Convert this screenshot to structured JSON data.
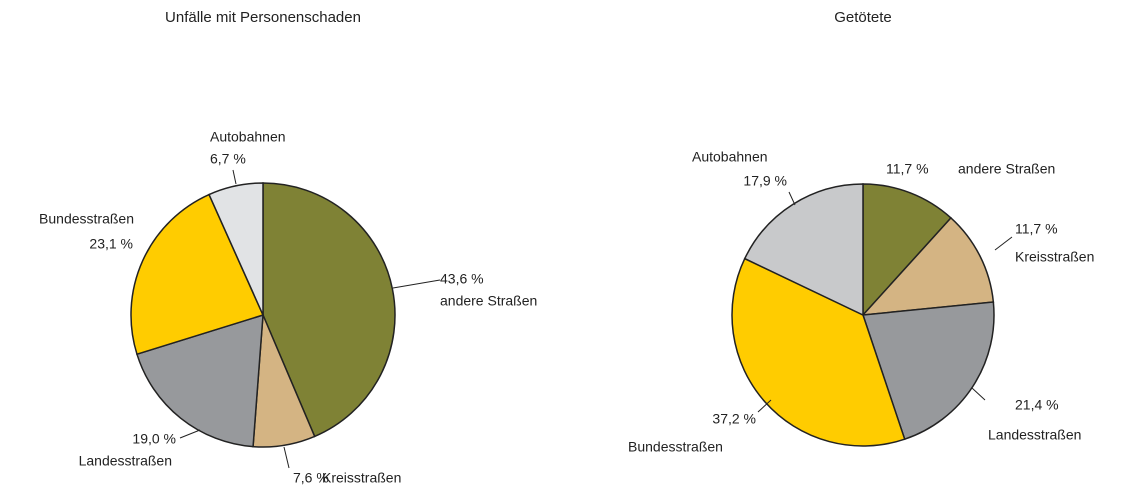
{
  "chart_data": [
    {
      "type": "pie",
      "title": "Unfälle mit Personenschaden",
      "categories": [
        "andere Straßen",
        "Kreisstraßen",
        "Landesstraßen",
        "Bundesstraßen",
        "Autobahnen"
      ],
      "values": [
        43.6,
        7.6,
        19.0,
        23.1,
        6.7
      ],
      "value_labels": [
        "43,6 %",
        "7,6 %",
        "19,0 %",
        "23,1 %",
        "6,7 %"
      ],
      "colors": [
        "#7f8235",
        "#d4b483",
        "#97999c",
        "#ffcc00",
        "#e1e3e5"
      ]
    },
    {
      "type": "pie",
      "title": "Getötete",
      "categories": [
        "andere Straßen",
        "Kreisstraßen",
        "Landesstraßen",
        "Bundesstraßen",
        "Autobahnen"
      ],
      "values": [
        11.7,
        11.7,
        21.4,
        37.2,
        17.9
      ],
      "value_labels": [
        "11,7 %",
        "11,7 %",
        "21,4 %",
        "37,2 %",
        "17,9 %"
      ],
      "colors": [
        "#7f8235",
        "#d4b483",
        "#97999c",
        "#ffcc00",
        "#c8c9cb"
      ]
    }
  ]
}
